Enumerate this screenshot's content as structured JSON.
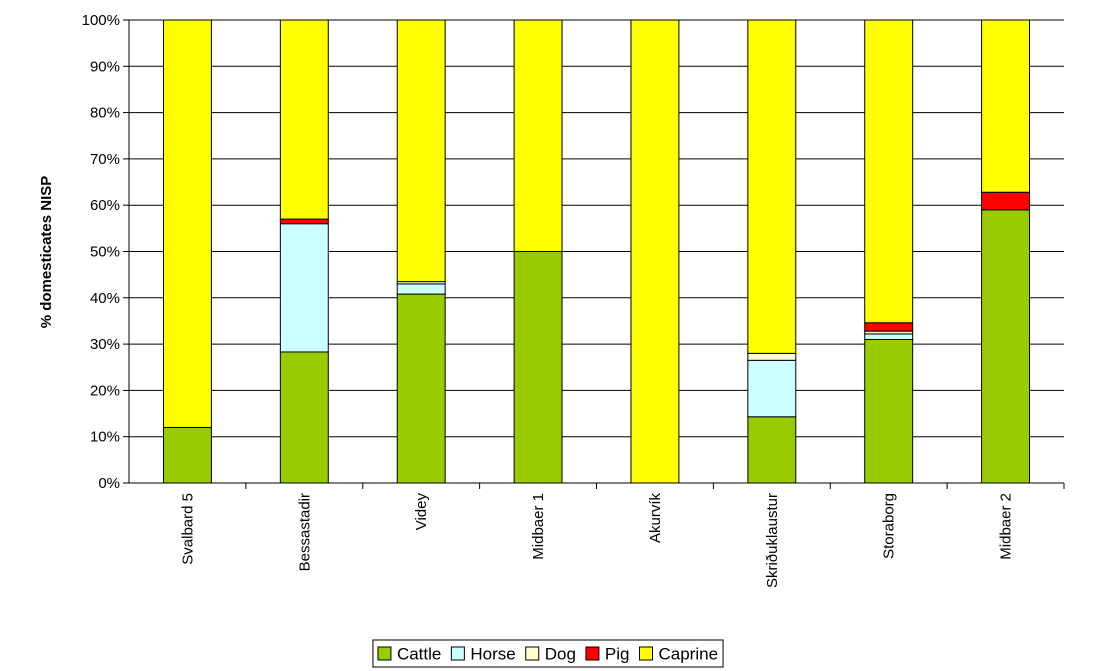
{
  "chart_data": {
    "type": "bar",
    "stacked": true,
    "percent": true,
    "title": "",
    "xlabel": "",
    "ylabel": "% domesticates NISP",
    "ylim": [
      0,
      100
    ],
    "yticks": [
      "0%",
      "10%",
      "20%",
      "30%",
      "40%",
      "50%",
      "60%",
      "70%",
      "80%",
      "90%",
      "100%"
    ],
    "grid": "horizontal",
    "legend_position": "bottom",
    "categories": [
      "Svalbard 5",
      "Bessastadir",
      "Videy",
      "Midbaer 1",
      "Akurvík",
      "Skriðuklaustur",
      "Storaborg",
      "Midbaer 2"
    ],
    "series": [
      {
        "name": "Cattle",
        "color": "#99cc00",
        "values": [
          12,
          28.3,
          40.8,
          50,
          0,
          14.3,
          31,
          59
        ]
      },
      {
        "name": "Horse",
        "color": "#ccffff",
        "values": [
          0,
          27.7,
          2.2,
          0,
          0,
          12.2,
          1.2,
          0
        ]
      },
      {
        "name": "Dog",
        "color": "#ffffcc",
        "values": [
          0,
          0,
          0.5,
          0,
          0,
          1.5,
          0.6,
          0
        ]
      },
      {
        "name": "Pig",
        "color": "#ff0000",
        "values": [
          0,
          1,
          0,
          0,
          0,
          0,
          1.8,
          3.8
        ]
      },
      {
        "name": "Caprine",
        "color": "#ffff00",
        "values": [
          88,
          43,
          56.5,
          50,
          100,
          72,
          65.4,
          37.2
        ]
      }
    ]
  }
}
